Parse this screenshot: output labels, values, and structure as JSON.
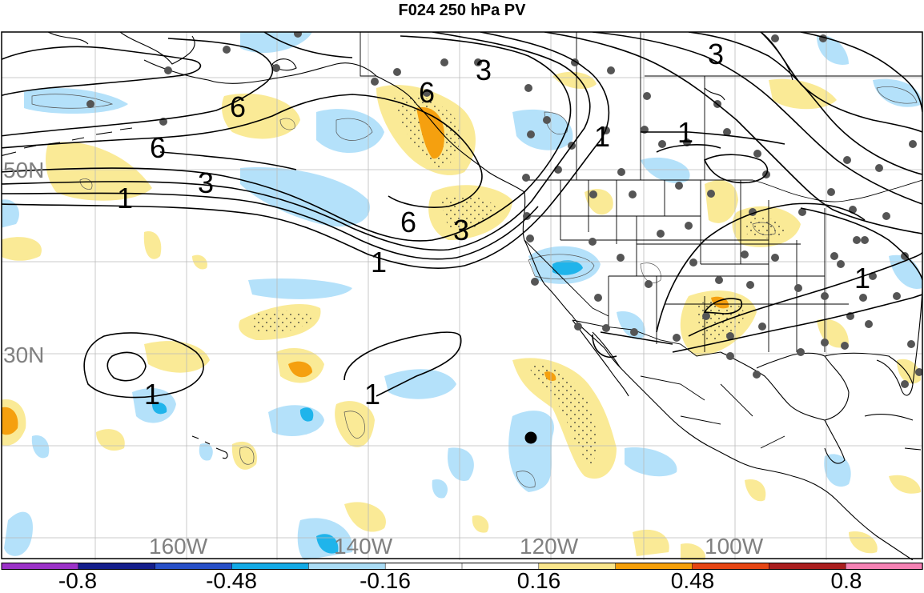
{
  "title": "F024 250 hPa PV",
  "map": {
    "region": "North Pacific and North America",
    "grid": true,
    "lat_labels": [
      "50N",
      "30N"
    ],
    "lon_labels": [
      "160W",
      "140W",
      "120W",
      "100W"
    ],
    "contour_labels": [
      "6",
      "6",
      "6",
      "6",
      "3",
      "3",
      "3",
      "3",
      "1",
      "1",
      "1",
      "1",
      "1",
      "1",
      "1"
    ],
    "colors": {
      "light_blue": "#b4e1fa",
      "mid_blue": "#1fb4eb",
      "light_yellow": "#faea96",
      "orange": "#f5a00f",
      "contour": "#000000",
      "station": "#555555",
      "grid": "#bbbbbb"
    }
  },
  "colorbar": {
    "labels": [
      "-0.8",
      "-0.48",
      "-0.16",
      "0.16",
      "0.48",
      "0.8"
    ],
    "colors": [
      "#9b32c8",
      "#141e8c",
      "#2850c8",
      "#14aae6",
      "#aadcf5",
      "#ffffff",
      "#ffffff",
      "#fae68c",
      "#f5a00a",
      "#e64614",
      "#aa1e1e",
      "#f582b4"
    ]
  }
}
